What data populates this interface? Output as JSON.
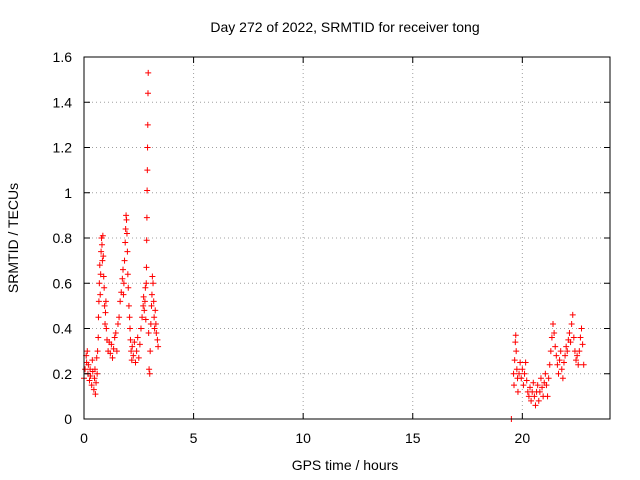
{
  "chart_data": {
    "type": "scatter",
    "title": "Day 272 of 2022, SRMTID for receiver tong",
    "xlabel": "GPS time / hours",
    "ylabel": "SRMTID / TECUs",
    "xlim": [
      0,
      24
    ],
    "ylim": [
      0,
      1.6
    ],
    "xticks": [
      0,
      5,
      10,
      15,
      20
    ],
    "xtick_labels": [
      "0",
      "5",
      "10",
      "15",
      "20"
    ],
    "yticks": [
      0,
      0.2,
      0.4,
      0.6,
      0.8,
      1,
      1.2,
      1.4,
      1.6
    ],
    "ytick_labels": [
      "0",
      "0.2",
      "0.4",
      "0.6",
      "0.8",
      "1",
      "1.2",
      "1.4",
      "1.6"
    ],
    "grid": true,
    "marker": "plus",
    "color": "#ff0000",
    "series": [
      {
        "name": "SRMTID",
        "points": [
          [
            0.0,
            0.18
          ],
          [
            0.05,
            0.22
          ],
          [
            0.1,
            0.28
          ],
          [
            0.12,
            0.25
          ],
          [
            0.15,
            0.3
          ],
          [
            0.18,
            0.2
          ],
          [
            0.2,
            0.24
          ],
          [
            0.25,
            0.17
          ],
          [
            0.28,
            0.22
          ],
          [
            0.3,
            0.19
          ],
          [
            0.35,
            0.15
          ],
          [
            0.38,
            0.26
          ],
          [
            0.4,
            0.21
          ],
          [
            0.45,
            0.13
          ],
          [
            0.48,
            0.18
          ],
          [
            0.5,
            0.22
          ],
          [
            0.52,
            0.11
          ],
          [
            0.55,
            0.16
          ],
          [
            0.58,
            0.27
          ],
          [
            0.6,
            0.2
          ],
          [
            0.62,
            0.3
          ],
          [
            0.65,
            0.36
          ],
          [
            0.66,
            0.45
          ],
          [
            0.68,
            0.52
          ],
          [
            0.7,
            0.6
          ],
          [
            0.72,
            0.68
          ],
          [
            0.74,
            0.55
          ],
          [
            0.76,
            0.64
          ],
          [
            0.78,
            0.74
          ],
          [
            0.8,
            0.8
          ],
          [
            0.82,
            0.77
          ],
          [
            0.84,
            0.7
          ],
          [
            0.86,
            0.81
          ],
          [
            0.88,
            0.72
          ],
          [
            0.9,
            0.63
          ],
          [
            0.92,
            0.58
          ],
          [
            0.94,
            0.5
          ],
          [
            0.96,
            0.42
          ],
          [
            0.98,
            0.47
          ],
          [
            1.0,
            0.52
          ],
          [
            1.02,
            0.4
          ],
          [
            1.05,
            0.35
          ],
          [
            1.1,
            0.3
          ],
          [
            1.15,
            0.34
          ],
          [
            1.2,
            0.29
          ],
          [
            1.25,
            0.33
          ],
          [
            1.3,
            0.27
          ],
          [
            1.35,
            0.31
          ],
          [
            1.4,
            0.36
          ],
          [
            1.45,
            0.38
          ],
          [
            1.5,
            0.3
          ],
          [
            1.55,
            0.42
          ],
          [
            1.6,
            0.45
          ],
          [
            1.65,
            0.52
          ],
          [
            1.7,
            0.56
          ],
          [
            1.75,
            0.62
          ],
          [
            1.78,
            0.66
          ],
          [
            1.8,
            0.55
          ],
          [
            1.82,
            0.6
          ],
          [
            1.85,
            0.7
          ],
          [
            1.88,
            0.78
          ],
          [
            1.9,
            0.84
          ],
          [
            1.92,
            0.9
          ],
          [
            1.94,
            0.88
          ],
          [
            1.96,
            0.82
          ],
          [
            1.98,
            0.74
          ],
          [
            2.0,
            0.64
          ],
          [
            2.02,
            0.58
          ],
          [
            2.05,
            0.5
          ],
          [
            2.08,
            0.45
          ],
          [
            2.1,
            0.4
          ],
          [
            2.12,
            0.35
          ],
          [
            2.15,
            0.3
          ],
          [
            2.18,
            0.26
          ],
          [
            2.2,
            0.32
          ],
          [
            2.25,
            0.28
          ],
          [
            2.3,
            0.34
          ],
          [
            2.35,
            0.25
          ],
          [
            2.4,
            0.3
          ],
          [
            2.45,
            0.36
          ],
          [
            2.5,
            0.27
          ],
          [
            2.55,
            0.33
          ],
          [
            2.6,
            0.4
          ],
          [
            2.65,
            0.45
          ],
          [
            2.7,
            0.5
          ],
          [
            2.72,
            0.54
          ],
          [
            2.75,
            0.48
          ],
          [
            2.78,
            0.52
          ],
          [
            2.8,
            0.58
          ],
          [
            2.82,
            0.44
          ],
          [
            2.84,
            0.6
          ],
          [
            2.85,
            0.67
          ],
          [
            2.86,
            0.79
          ],
          [
            2.87,
            0.89
          ],
          [
            2.88,
            1.01
          ],
          [
            2.89,
            1.1
          ],
          [
            2.9,
            1.2
          ],
          [
            2.91,
            1.3
          ],
          [
            2.92,
            1.44
          ],
          [
            2.93,
            1.53
          ],
          [
            2.95,
            0.38
          ],
          [
            2.97,
            0.22
          ],
          [
            3.0,
            0.2
          ],
          [
            3.02,
            0.3
          ],
          [
            3.05,
            0.42
          ],
          [
            3.08,
            0.5
          ],
          [
            3.1,
            0.55
          ],
          [
            3.12,
            0.63
          ],
          [
            3.15,
            0.6
          ],
          [
            3.18,
            0.52
          ],
          [
            3.2,
            0.45
          ],
          [
            3.22,
            0.4
          ],
          [
            3.25,
            0.48
          ],
          [
            3.28,
            0.42
          ],
          [
            3.3,
            0.38
          ],
          [
            3.35,
            0.35
          ],
          [
            3.38,
            0.32
          ],
          [
            19.5,
            0.0
          ],
          [
            19.6,
            0.2
          ],
          [
            19.62,
            0.15
          ],
          [
            19.65,
            0.26
          ],
          [
            19.68,
            0.34
          ],
          [
            19.7,
            0.37
          ],
          [
            19.72,
            0.3
          ],
          [
            19.75,
            0.22
          ],
          [
            19.78,
            0.18
          ],
          [
            19.8,
            0.12
          ],
          [
            19.85,
            0.2
          ],
          [
            19.9,
            0.25
          ],
          [
            19.95,
            0.18
          ],
          [
            20.0,
            0.22
          ],
          [
            20.05,
            0.15
          ],
          [
            20.1,
            0.2
          ],
          [
            20.15,
            0.25
          ],
          [
            20.2,
            0.17
          ],
          [
            20.25,
            0.12
          ],
          [
            20.3,
            0.1
          ],
          [
            20.35,
            0.14
          ],
          [
            20.4,
            0.08
          ],
          [
            20.45,
            0.12
          ],
          [
            20.5,
            0.16
          ],
          [
            20.55,
            0.1
          ],
          [
            20.6,
            0.06
          ],
          [
            20.65,
            0.12
          ],
          [
            20.7,
            0.15
          ],
          [
            20.75,
            0.08
          ],
          [
            20.8,
            0.12
          ],
          [
            20.85,
            0.18
          ],
          [
            20.9,
            0.14
          ],
          [
            20.95,
            0.1
          ],
          [
            21.0,
            0.16
          ],
          [
            21.05,
            0.2
          ],
          [
            21.1,
            0.15
          ],
          [
            21.15,
            0.1
          ],
          [
            21.2,
            0.18
          ],
          [
            21.25,
            0.24
          ],
          [
            21.3,
            0.3
          ],
          [
            21.35,
            0.36
          ],
          [
            21.4,
            0.42
          ],
          [
            21.45,
            0.38
          ],
          [
            21.5,
            0.32
          ],
          [
            21.55,
            0.28
          ],
          [
            21.6,
            0.24
          ],
          [
            21.65,
            0.2
          ],
          [
            21.7,
            0.26
          ],
          [
            21.75,
            0.3
          ],
          [
            21.8,
            0.22
          ],
          [
            21.85,
            0.18
          ],
          [
            21.9,
            0.25
          ],
          [
            21.95,
            0.28
          ],
          [
            22.0,
            0.32
          ],
          [
            22.05,
            0.3
          ],
          [
            22.1,
            0.35
          ],
          [
            22.15,
            0.38
          ],
          [
            22.2,
            0.34
          ],
          [
            22.25,
            0.42
          ],
          [
            22.3,
            0.46
          ],
          [
            22.35,
            0.36
          ],
          [
            22.4,
            0.3
          ],
          [
            22.45,
            0.26
          ],
          [
            22.5,
            0.28
          ],
          [
            22.55,
            0.24
          ],
          [
            22.6,
            0.3
          ],
          [
            22.65,
            0.36
          ],
          [
            22.7,
            0.4
          ],
          [
            22.75,
            0.33
          ],
          [
            22.8,
            0.24
          ]
        ]
      }
    ]
  }
}
